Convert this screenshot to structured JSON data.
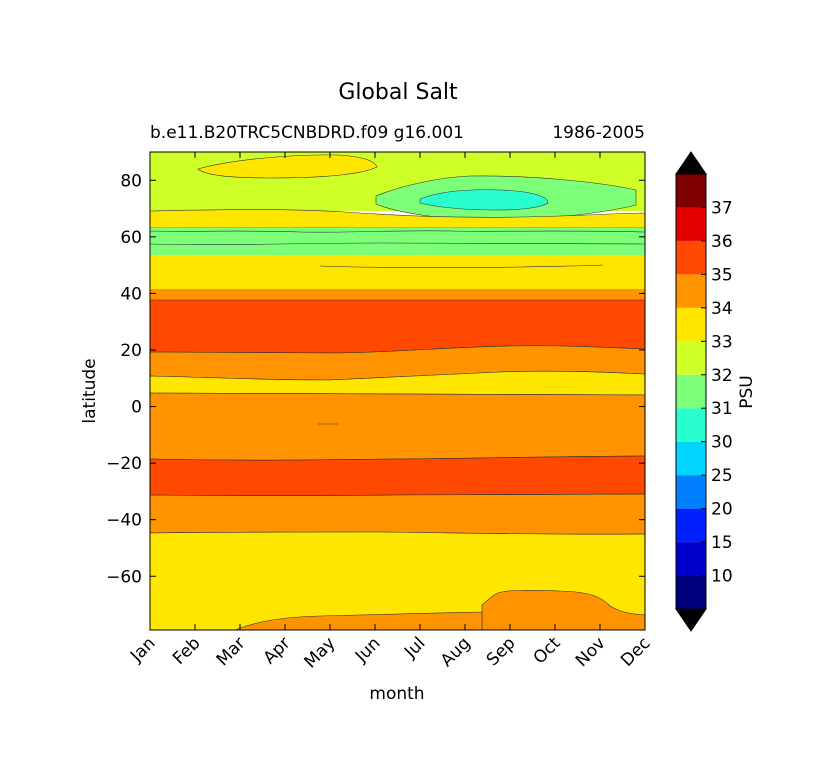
{
  "chart_data": {
    "type": "heatmap",
    "title": "Global Salt",
    "subtitle_left": "b.e11.B20TRC5CNBDRD.f09 g16.001",
    "subtitle_right": "1986-2005",
    "xlabel": "month",
    "ylabel": "latitude",
    "x_ticks": [
      "Jan",
      "Feb",
      "Mar",
      "Apr",
      "May",
      "Jun",
      "Jul",
      "Aug",
      "Sep",
      "Oct",
      "Nov",
      "Dec"
    ],
    "y_ticks": [
      80,
      60,
      40,
      20,
      0,
      -20,
      -40,
      -60
    ],
    "y_tick_labels": [
      "80",
      "60",
      "40",
      "20",
      "0",
      "−20",
      "−40",
      "−60"
    ],
    "ylim": [
      -79,
      90
    ],
    "colorbar": {
      "label": "PSU",
      "extend": "both",
      "levels": [
        "10",
        "15",
        "20",
        "25",
        "30",
        "31",
        "32",
        "33",
        "34",
        "35",
        "36",
        "37"
      ],
      "colors": [
        "#00007f",
        "#0000cd",
        "#0020ff",
        "#0080ff",
        "#00d4ff",
        "#29ffce",
        "#7dff7a",
        "#ceff29",
        "#ffe600",
        "#ff9400",
        "#ff4800",
        "#e40000",
        "#7f0000"
      ],
      "under_color": "#000000",
      "over_color": "#000000"
    },
    "bands": [
      {
        "lat_min": -79,
        "lat_max": -75,
        "value": "33-34 / 34-35 (Sep-Dec)"
      },
      {
        "lat_min": -75,
        "lat_max": -44,
        "value": "33-34"
      },
      {
        "lat_min": -44,
        "lat_max": -32,
        "value": "34-35"
      },
      {
        "lat_min": -32,
        "lat_max": -18,
        "value": "35-36"
      },
      {
        "lat_min": -18,
        "lat_max": 5,
        "value": "34-35"
      },
      {
        "lat_min": 5,
        "lat_max": 11,
        "value": "33-34"
      },
      {
        "lat_min": 11,
        "lat_max": 20,
        "value": "34-35"
      },
      {
        "lat_min": 20,
        "lat_max": 37,
        "value": "35-36"
      },
      {
        "lat_min": 37,
        "lat_max": 41,
        "value": "34-35"
      },
      {
        "lat_min": 41,
        "lat_max": 53,
        "value": "33-34"
      },
      {
        "lat_min": 53,
        "lat_max": 64,
        "value": "31-32"
      },
      {
        "lat_min": 64,
        "lat_max": 69,
        "value": "33-34"
      },
      {
        "lat_min": 69,
        "lat_max": 90,
        "value": "32-33"
      },
      {
        "lat_min": 80,
        "lat_max": 86,
        "value": "33-34 (Feb-Jun)"
      },
      {
        "lat_min": 67,
        "lat_max": 81,
        "value": "31-32 (Jul-Nov)"
      },
      {
        "lat_min": 70,
        "lat_max": 76,
        "value": "30-31 (Aug-Oct)"
      }
    ]
  }
}
